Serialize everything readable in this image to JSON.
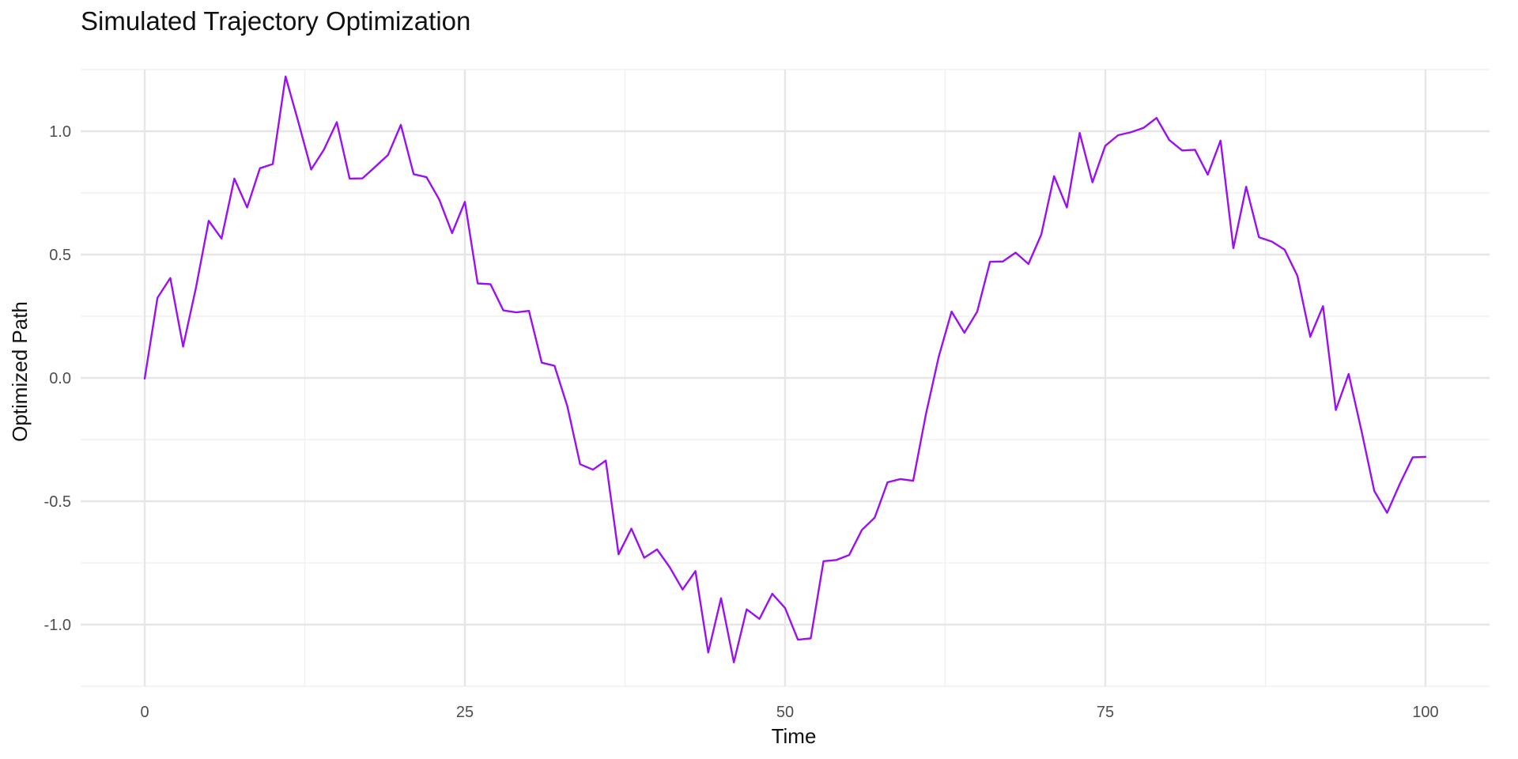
{
  "chart_data": {
    "type": "line",
    "title": "Simulated Trajectory Optimization",
    "xlabel": "Time",
    "ylabel": "Optimized Path",
    "xlim": [
      -5,
      105
    ],
    "ylim": [
      -1.25,
      1.25
    ],
    "x_ticks": [
      0,
      25,
      50,
      75,
      100
    ],
    "x_tick_labels": [
      "0",
      "25",
      "50",
      "75",
      "100"
    ],
    "x_minor_ticks": [
      12.5,
      37.5,
      62.5,
      87.5
    ],
    "y_ticks": [
      -1.0,
      -0.5,
      0.0,
      0.5,
      1.0
    ],
    "y_tick_labels": [
      "-1.0",
      "-0.5",
      "0.0",
      "0.5",
      "1.0"
    ],
    "y_minor_ticks": [
      -1.25,
      -0.75,
      -0.25,
      0.25,
      0.75,
      1.25
    ],
    "grid": true,
    "legend": "none",
    "line_color": "#9b10f0",
    "series": [
      {
        "x": [
          0,
          1,
          2,
          3,
          4,
          5,
          6,
          7,
          8,
          9,
          10,
          11,
          12,
          13,
          14,
          15,
          16,
          17,
          18,
          19,
          20,
          21,
          22,
          23,
          24,
          25,
          26,
          27,
          28,
          29,
          30,
          31,
          32,
          33,
          34,
          35,
          36,
          37,
          38,
          39,
          40,
          41,
          42,
          43,
          44,
          45,
          46,
          47,
          48,
          49,
          50,
          51,
          52,
          53,
          54,
          55,
          56,
          57,
          58,
          59,
          60,
          61,
          62,
          63,
          64,
          65,
          66,
          67,
          68,
          69,
          70,
          71,
          72,
          73,
          74,
          75,
          76,
          77,
          78,
          79,
          80,
          81,
          82,
          83,
          84,
          85,
          86,
          87,
          88,
          89,
          90,
          91,
          92,
          93,
          94,
          95,
          96,
          97,
          98,
          99,
          100
        ],
        "values": [
          -0.003,
          0.325,
          0.405,
          0.127,
          0.365,
          0.637,
          0.565,
          0.808,
          0.691,
          0.85,
          0.867,
          1.222,
          1.037,
          0.845,
          0.926,
          1.037,
          0.808,
          0.809,
          0.856,
          0.904,
          1.026,
          0.826,
          0.814,
          0.723,
          0.587,
          0.714,
          0.383,
          0.38,
          0.274,
          0.266,
          0.272,
          0.062,
          0.049,
          -0.115,
          -0.35,
          -0.372,
          -0.335,
          -0.715,
          -0.611,
          -0.729,
          -0.695,
          -0.768,
          -0.858,
          -0.783,
          -1.113,
          -0.893,
          -1.153,
          -0.938,
          -0.977,
          -0.875,
          -0.933,
          -1.061,
          -1.056,
          -0.743,
          -0.738,
          -0.718,
          -0.616,
          -0.566,
          -0.423,
          -0.41,
          -0.417,
          -0.146,
          0.087,
          0.269,
          0.183,
          0.269,
          0.471,
          0.472,
          0.508,
          0.462,
          0.581,
          0.818,
          0.691,
          0.993,
          0.793,
          0.941,
          0.984,
          0.996,
          1.014,
          1.054,
          0.964,
          0.922,
          0.925,
          0.824,
          0.962,
          0.526,
          0.775,
          0.57,
          0.553,
          0.52,
          0.414,
          0.167,
          0.291,
          -0.13,
          0.016,
          -0.214,
          -0.458,
          -0.547,
          -0.429,
          -0.322,
          -0.32
        ]
      }
    ]
  }
}
